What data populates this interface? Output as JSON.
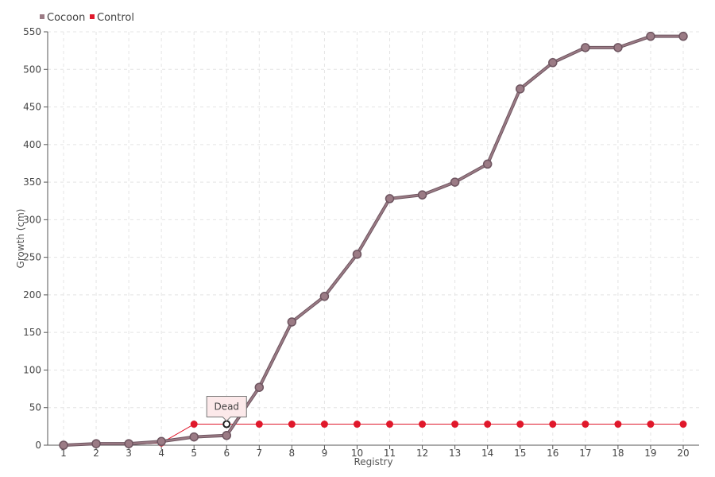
{
  "chart_data": {
    "type": "line",
    "title": "",
    "xlabel": "Registry",
    "ylabel": "Growth (cm)",
    "x": [
      1,
      2,
      3,
      4,
      5,
      6,
      7,
      8,
      9,
      10,
      11,
      12,
      13,
      14,
      15,
      16,
      17,
      18,
      19,
      20
    ],
    "ylim": [
      0,
      550
    ],
    "yticks": [
      0,
      50,
      100,
      150,
      200,
      250,
      300,
      350,
      400,
      450,
      500,
      550
    ],
    "grid": true,
    "legend_position": "top-left",
    "series": [
      {
        "name": "Cocoon",
        "color": "#9b7b85",
        "values": [
          0,
          2,
          2,
          5,
          11,
          13,
          77,
          164,
          198,
          254,
          328,
          333,
          350,
          374,
          474,
          509,
          529,
          529,
          544,
          544
        ]
      },
      {
        "name": "Control",
        "color": "#e0182b",
        "values": [
          0,
          1,
          1,
          3,
          28,
          28,
          28,
          28,
          28,
          28,
          28,
          28,
          28,
          28,
          28,
          28,
          28,
          28,
          28,
          28
        ]
      }
    ],
    "annotations": [
      {
        "text": "Dead",
        "series": "Control",
        "x": 6,
        "y": 28
      }
    ]
  }
}
